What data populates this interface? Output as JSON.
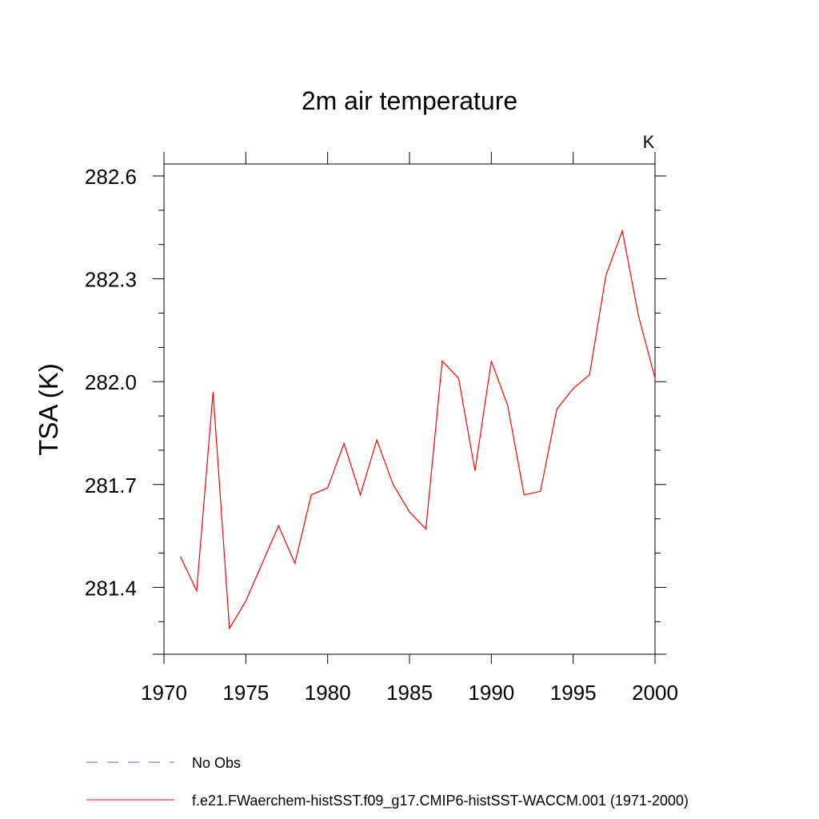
{
  "chart_data": {
    "type": "line",
    "title": "2m air temperature",
    "units_label": "K",
    "ylabel": "TSA  (K)",
    "xlabel": "",
    "xlim": [
      1970,
      2000
    ],
    "ylim": [
      281.205,
      282.635
    ],
    "x_ticks": [
      1970,
      1975,
      1980,
      1985,
      1990,
      1995,
      2000
    ],
    "x_tick_labels": [
      "1970",
      "1975",
      "1980",
      "1985",
      "1990",
      "1995",
      "2000"
    ],
    "y_ticks": [
      281.4,
      281.7,
      282.0,
      282.3,
      282.6
    ],
    "y_tick_labels": [
      "281.4",
      "281.7",
      "282.0",
      "282.3",
      "282.6"
    ],
    "y_minor_step": 0.1,
    "x_minor_step": 1,
    "grid": false,
    "legend_position": "bottom-left",
    "series": [
      {
        "name": "No Obs",
        "color": "#6a5acd",
        "dash": "dashed",
        "x": [],
        "values": []
      },
      {
        "name": "f.e21.FWaerchem-histSST.f09_g17.CMIP6-histSST-WACCM.001 (1971-2000)",
        "color": "#ff0000",
        "dash": "solid",
        "x": [
          1971,
          1972,
          1973,
          1974,
          1975,
          1976,
          1977,
          1978,
          1979,
          1980,
          1981,
          1982,
          1983,
          1984,
          1985,
          1986,
          1987,
          1988,
          1989,
          1990,
          1991,
          1992,
          1993,
          1994,
          1995,
          1996,
          1997,
          1998,
          1999,
          2000
        ],
        "values": [
          281.49,
          281.39,
          281.97,
          281.28,
          281.36,
          281.47,
          281.58,
          281.47,
          281.67,
          281.69,
          281.82,
          281.67,
          281.83,
          281.7,
          281.62,
          281.57,
          282.06,
          282.01,
          281.74,
          282.06,
          281.93,
          281.67,
          281.68,
          281.92,
          281.98,
          282.02,
          282.31,
          282.44,
          282.19,
          282.01
        ]
      }
    ]
  }
}
